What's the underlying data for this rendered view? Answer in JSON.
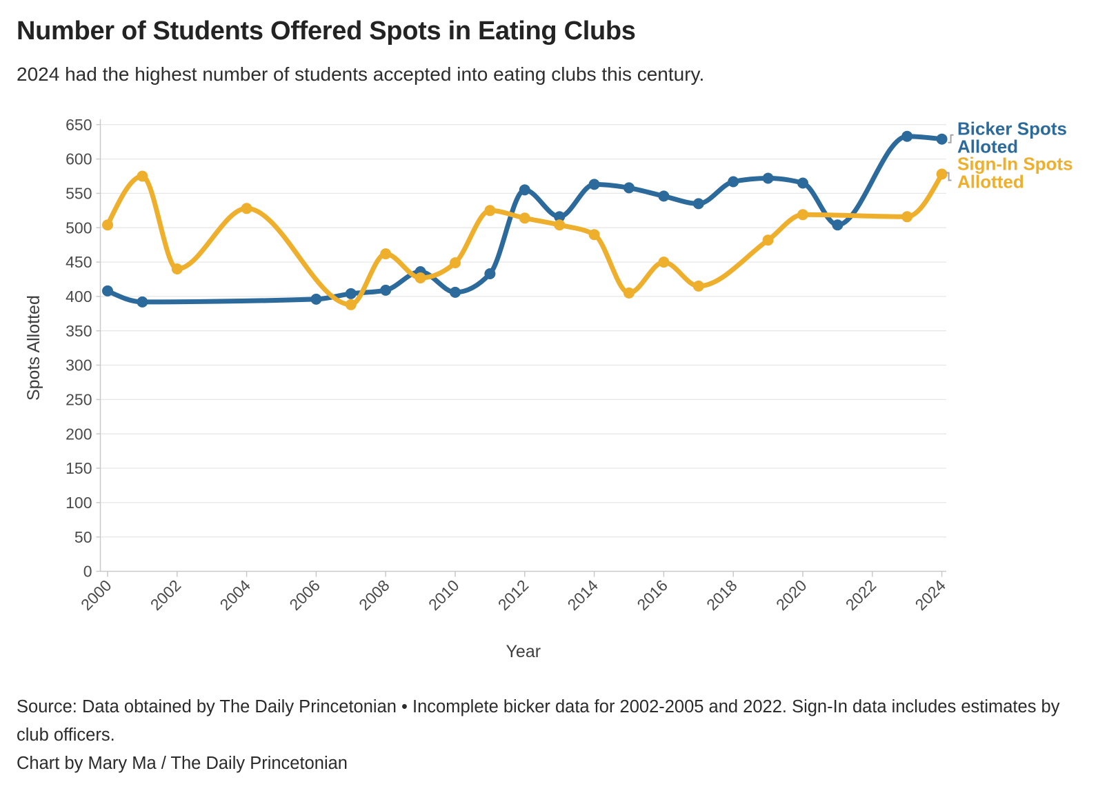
{
  "title": "Number of Students Offered Spots in Eating Clubs",
  "subtitle": "2024 had the highest number of students accepted into eating clubs this century.",
  "footer": {
    "source": "Source: Data obtained by The Daily Princetonian • Incomplete bicker data for 2002-2005 and 2022. Sign-In data includes estimates by club officers.",
    "credit": "Chart by Mary Ma / The Daily Princetonian"
  },
  "chart_data": {
    "type": "line",
    "title": "Number of Students Offered Spots in Eating Clubs",
    "xlabel": "Year",
    "ylabel": "Spots Allotted",
    "xlim": [
      2000,
      2024
    ],
    "ylim": [
      0,
      650
    ],
    "x_ticks": [
      2000,
      2002,
      2004,
      2006,
      2008,
      2010,
      2012,
      2014,
      2016,
      2018,
      2020,
      2022,
      2024
    ],
    "y_ticks": [
      0,
      50,
      100,
      150,
      200,
      250,
      300,
      350,
      400,
      450,
      500,
      550,
      600,
      650
    ],
    "grid": "horizontal",
    "curve": "monotone",
    "legend_position": "right-end-labels",
    "colors": {
      "bicker": "#2b6a9b",
      "signin": "#eeaf2c",
      "grid": "#e7e7e7",
      "axis": "#c9c9c9",
      "tick_text": "#4a4a4a",
      "connector": "#a3a3a3"
    },
    "series": [
      {
        "name": "Bicker Spots Alloted",
        "label_lines": [
          "Bicker Spots",
          "Alloted"
        ],
        "color": "#2b6a9b",
        "points": [
          [
            2000,
            408
          ],
          [
            2001,
            392
          ],
          [
            2006,
            396
          ],
          [
            2007,
            404
          ],
          [
            2008,
            409
          ],
          [
            2009,
            436
          ],
          [
            2010,
            406
          ],
          [
            2011,
            433
          ],
          [
            2012,
            555
          ],
          [
            2013,
            516
          ],
          [
            2014,
            563
          ],
          [
            2015,
            558
          ],
          [
            2016,
            546
          ],
          [
            2017,
            535
          ],
          [
            2018,
            567
          ],
          [
            2019,
            572
          ],
          [
            2020,
            565
          ],
          [
            2021,
            504
          ],
          [
            2023,
            633
          ],
          [
            2024,
            629
          ]
        ]
      },
      {
        "name": "Sign-In Spots Allotted",
        "label_lines": [
          "Sign-In Spots",
          "Allotted"
        ],
        "color": "#eeaf2c",
        "points": [
          [
            2000,
            504
          ],
          [
            2001,
            575
          ],
          [
            2002,
            440
          ],
          [
            2004,
            528
          ],
          [
            2007,
            388
          ],
          [
            2008,
            462
          ],
          [
            2009,
            427
          ],
          [
            2010,
            449
          ],
          [
            2011,
            525
          ],
          [
            2012,
            514
          ],
          [
            2013,
            504
          ],
          [
            2014,
            490
          ],
          [
            2015,
            405
          ],
          [
            2016,
            450
          ],
          [
            2017,
            415
          ],
          [
            2019,
            482
          ],
          [
            2020,
            519
          ],
          [
            2023,
            516
          ],
          [
            2024,
            578
          ]
        ]
      }
    ]
  }
}
